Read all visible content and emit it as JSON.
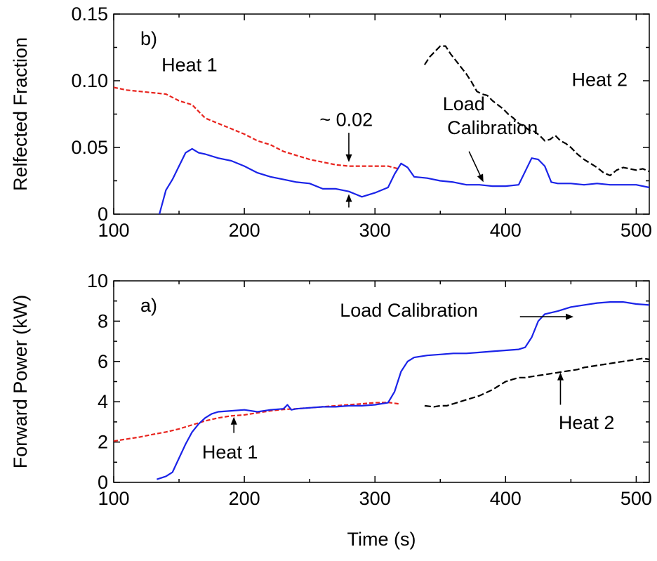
{
  "chart_data": [
    {
      "type": "line",
      "panel_label": "b)",
      "xlabel": "",
      "ylabel": "Relfected Fraction",
      "xlim": [
        100,
        510
      ],
      "ylim": [
        0,
        0.15
      ],
      "xticks": [
        100,
        200,
        300,
        400,
        500
      ],
      "xtick_labels": [
        "100",
        "200",
        "300",
        "400",
        "500"
      ],
      "yticks": [
        0,
        0.05,
        0.1,
        0.15
      ],
      "ytick_labels": [
        "0",
        "0.05",
        "0.10",
        "0.15"
      ],
      "grid": false,
      "series": [
        {
          "color": "#e8231d",
          "dash": "6,3",
          "x": [
            100,
            110,
            120,
            130,
            140,
            150,
            160,
            170,
            180,
            190,
            200,
            210,
            220,
            230,
            240,
            250,
            260,
            270,
            280,
            290,
            300,
            310,
            318
          ],
          "y": [
            0.095,
            0.093,
            0.092,
            0.091,
            0.09,
            0.085,
            0.082,
            0.072,
            0.068,
            0.064,
            0.06,
            0.055,
            0.052,
            0.047,
            0.044,
            0.041,
            0.039,
            0.037,
            0.036,
            0.036,
            0.036,
            0.036,
            0.034
          ]
        },
        {
          "color": "#1a23e8",
          "dash": "",
          "x": [
            135,
            140,
            145,
            150,
            155,
            160,
            165,
            170,
            180,
            190,
            200,
            210,
            220,
            230,
            240,
            250,
            260,
            270,
            280,
            285,
            290,
            300,
            310,
            315,
            320,
            325,
            330,
            340,
            350,
            360,
            370,
            380,
            390,
            400,
            410,
            415,
            420,
            425,
            430,
            435,
            440,
            450,
            460,
            470,
            480,
            490,
            500,
            510
          ],
          "y": [
            0.0,
            0.018,
            0.026,
            0.036,
            0.046,
            0.049,
            0.046,
            0.045,
            0.042,
            0.04,
            0.036,
            0.031,
            0.028,
            0.026,
            0.024,
            0.023,
            0.019,
            0.019,
            0.017,
            0.015,
            0.013,
            0.016,
            0.02,
            0.03,
            0.038,
            0.035,
            0.028,
            0.027,
            0.025,
            0.024,
            0.022,
            0.022,
            0.021,
            0.021,
            0.022,
            0.032,
            0.042,
            0.041,
            0.036,
            0.024,
            0.023,
            0.023,
            0.022,
            0.023,
            0.022,
            0.022,
            0.022,
            0.02
          ]
        },
        {
          "color": "#000000",
          "dash": "9,4",
          "x": [
            338,
            342,
            346,
            350,
            354,
            358,
            362,
            366,
            370,
            374,
            378,
            382,
            386,
            390,
            394,
            398,
            402,
            406,
            410,
            414,
            418,
            422,
            426,
            430,
            434,
            438,
            442,
            446,
            450,
            455,
            460,
            465,
            470,
            475,
            480,
            485,
            490,
            495,
            500,
            505,
            510
          ],
          "y": [
            0.112,
            0.118,
            0.122,
            0.126,
            0.126,
            0.12,
            0.115,
            0.11,
            0.105,
            0.099,
            0.092,
            0.09,
            0.089,
            0.085,
            0.082,
            0.079,
            0.075,
            0.072,
            0.068,
            0.066,
            0.063,
            0.062,
            0.059,
            0.055,
            0.056,
            0.059,
            0.055,
            0.053,
            0.05,
            0.045,
            0.041,
            0.038,
            0.035,
            0.031,
            0.029,
            0.033,
            0.035,
            0.034,
            0.033,
            0.034,
            0.032
          ]
        }
      ],
      "annotations": [
        {
          "text": "Heat 1",
          "x": 158,
          "y": 0.107
        },
        {
          "text": "~ 0.02",
          "x": 278,
          "y": 0.066
        },
        {
          "text": "Load",
          "x": 368,
          "y": 0.078
        },
        {
          "text": "Calibration",
          "x": 390,
          "y": 0.06
        },
        {
          "text": "Heat 2",
          "x": 472,
          "y": 0.096
        }
      ],
      "arrows": [
        {
          "from": [
            280,
            0.061
          ],
          "to": [
            280,
            0.039
          ]
        },
        {
          "from": [
            280,
            0.005
          ],
          "to": [
            280,
            0.015
          ]
        },
        {
          "from": [
            372,
            0.047
          ],
          "to": [
            383,
            0.024
          ]
        }
      ]
    },
    {
      "type": "line",
      "panel_label": "a)",
      "xlabel": "Time (s)",
      "ylabel": "Forward Power (kW)",
      "xlim": [
        100,
        510
      ],
      "ylim": [
        0,
        10
      ],
      "xticks": [
        100,
        200,
        300,
        400,
        500
      ],
      "xtick_labels": [
        "100",
        "200",
        "300",
        "400",
        "500"
      ],
      "yticks": [
        0,
        2,
        4,
        6,
        8,
        10
      ],
      "ytick_labels": [
        "0",
        "2",
        "4",
        "6",
        "8",
        "10"
      ],
      "grid": false,
      "series": [
        {
          "color": "#e8231d",
          "dash": "6,3",
          "x": [
            100,
            110,
            120,
            130,
            140,
            150,
            160,
            170,
            180,
            190,
            200,
            210,
            220,
            230,
            240,
            250,
            260,
            270,
            280,
            290,
            300,
            310,
            318
          ],
          "y": [
            2.05,
            2.15,
            2.25,
            2.38,
            2.5,
            2.65,
            2.85,
            3.05,
            3.2,
            3.3,
            3.35,
            3.45,
            3.55,
            3.62,
            3.65,
            3.7,
            3.75,
            3.8,
            3.85,
            3.9,
            3.95,
            3.97,
            3.9
          ]
        },
        {
          "color": "#1a23e8",
          "dash": "",
          "x": [
            133,
            140,
            145,
            150,
            155,
            160,
            165,
            170,
            175,
            180,
            190,
            200,
            210,
            220,
            230,
            233,
            236,
            240,
            250,
            260,
            270,
            280,
            290,
            300,
            310,
            315,
            320,
            325,
            330,
            340,
            350,
            360,
            370,
            380,
            390,
            400,
            410,
            415,
            420,
            425,
            430,
            440,
            450,
            460,
            470,
            480,
            490,
            500,
            510
          ],
          "y": [
            0.15,
            0.3,
            0.5,
            1.2,
            1.9,
            2.5,
            2.9,
            3.2,
            3.4,
            3.5,
            3.55,
            3.6,
            3.5,
            3.6,
            3.65,
            3.85,
            3.6,
            3.65,
            3.7,
            3.75,
            3.75,
            3.8,
            3.8,
            3.85,
            3.95,
            4.5,
            5.5,
            6.0,
            6.2,
            6.3,
            6.35,
            6.4,
            6.4,
            6.45,
            6.5,
            6.55,
            6.6,
            6.7,
            7.2,
            8.0,
            8.35,
            8.5,
            8.7,
            8.8,
            8.9,
            8.95,
            8.95,
            8.85,
            8.8
          ]
        },
        {
          "color": "#000000",
          "dash": "9,4",
          "x": [
            338,
            345,
            350,
            355,
            360,
            365,
            370,
            375,
            380,
            385,
            390,
            395,
            400,
            405,
            410,
            415,
            420,
            425,
            430,
            435,
            440,
            445,
            450,
            455,
            460,
            465,
            470,
            475,
            480,
            485,
            490,
            495,
            500,
            505,
            510
          ],
          "y": [
            3.8,
            3.75,
            3.8,
            3.8,
            3.9,
            4.0,
            4.1,
            4.2,
            4.3,
            4.45,
            4.6,
            4.8,
            5.0,
            5.1,
            5.2,
            5.2,
            5.25,
            5.3,
            5.35,
            5.4,
            5.45,
            5.5,
            5.55,
            5.6,
            5.7,
            5.75,
            5.8,
            5.85,
            5.9,
            5.95,
            6.0,
            6.05,
            6.1,
            6.15,
            6.1
          ]
        }
      ],
      "annotations": [
        {
          "text": "Load Calibration",
          "x": 326,
          "y": 8.22
        },
        {
          "text": "Heat 1",
          "x": 189,
          "y": 1.18
        },
        {
          "text": "Heat 2",
          "x": 462,
          "y": 2.65
        }
      ],
      "arrows": [
        {
          "from": [
            411,
            8.22
          ],
          "to": [
            452,
            8.22
          ]
        },
        {
          "from": [
            192,
            2.45
          ],
          "to": [
            192,
            3.25
          ]
        },
        {
          "from": [
            442,
            3.85
          ],
          "to": [
            442,
            5.45
          ]
        }
      ]
    }
  ]
}
